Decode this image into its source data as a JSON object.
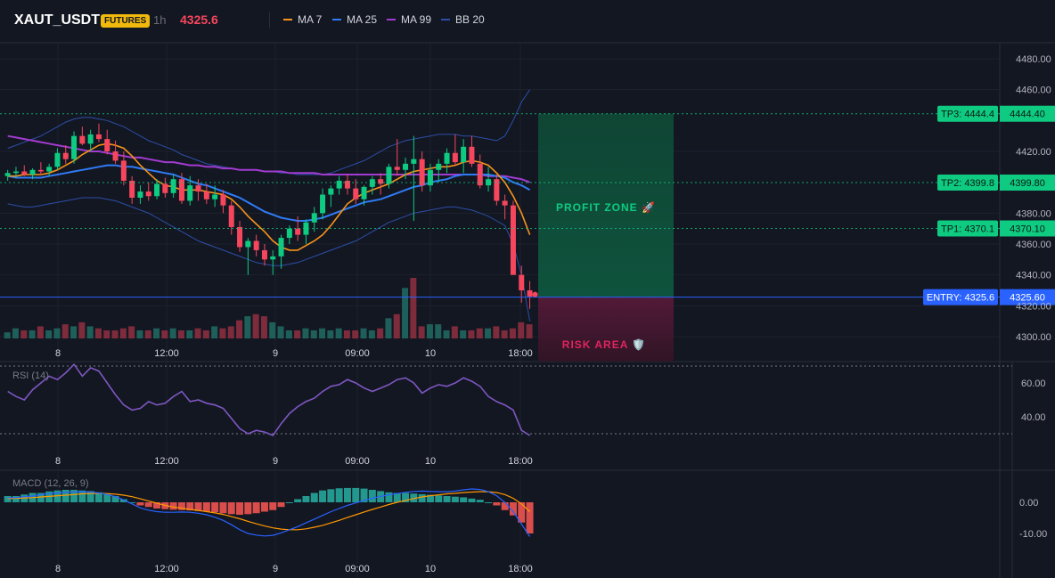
{
  "header": {
    "symbol": "XAUT_USDT",
    "badge": "FUTURES",
    "timeframe": "1h",
    "last_price": "4325.6"
  },
  "legend": [
    {
      "label": "MA 7",
      "color": "#f7931a"
    },
    {
      "label": "MA 25",
      "color": "#2f7bf5"
    },
    {
      "label": "MA 99",
      "color": "#a23bd1"
    },
    {
      "label": "BB 20",
      "color": "#2d4ea8"
    }
  ],
  "colors": {
    "up": "#26a69a",
    "up_bright": "#0ecb81",
    "down": "#f6465d",
    "entry": "#2962ff",
    "tp": "#0ecb81",
    "profit_zone": "#0c3a2c",
    "risk_zone": "#3a1426",
    "rsi": "#7e57c2",
    "macd_line": "#2962ff",
    "signal_line": "#ff9800"
  },
  "x_labels": [
    "8",
    "12:00",
    "9",
    "09:00",
    "10",
    "18:00"
  ],
  "zones": {
    "profit_label": "PROFIT ZONE 🚀",
    "risk_label": "RISK AREA 🛡️"
  },
  "levels": [
    {
      "name": "TP3",
      "tag": "TP3: 4444.4",
      "axis": "4444.40",
      "value": 4444.4
    },
    {
      "name": "TP2",
      "tag": "TP2: 4399.8",
      "axis": "4399.80",
      "value": 4399.8
    },
    {
      "name": "TP1",
      "tag": "TP1: 4370.1",
      "axis": "4370.10",
      "value": 4370.1
    },
    {
      "name": "ENTRY",
      "tag": "ENTRY: 4325.6",
      "axis": "4325.60",
      "value": 4325.6
    }
  ],
  "rsi_label": "RSI (14)",
  "macd_label": "MACD (12, 26, 9)",
  "chart_data": {
    "type": "candlestick",
    "price_axis": {
      "ticks": [
        "4480.00",
        "4460.00",
        "4420.00",
        "4380.00",
        "4360.00",
        "4340.00",
        "4320.00",
        "4300.00"
      ],
      "tick_values": [
        4480,
        4460,
        4420,
        4380,
        4360,
        4340,
        4320,
        4300
      ],
      "range": [
        4300,
        4480
      ]
    },
    "rsi_axis": {
      "ticks": [
        "60.00",
        "40.00"
      ],
      "tick_values": [
        60,
        40
      ],
      "bands": [
        70,
        30
      ],
      "range": [
        15,
        85
      ]
    },
    "macd_axis": {
      "ticks": [
        "0.00",
        "-10.00"
      ],
      "tick_values": [
        0,
        -10
      ],
      "range": [
        -14,
        8
      ]
    },
    "candles": [
      [
        4404,
        4408,
        4401,
        4406
      ],
      [
        4406,
        4410,
        4403,
        4407
      ],
      [
        4407,
        4411,
        4404,
        4405
      ],
      [
        4405,
        4409,
        4402,
        4408
      ],
      [
        4408,
        4413,
        4405,
        4407
      ],
      [
        4407,
        4412,
        4404,
        4410
      ],
      [
        4410,
        4422,
        4408,
        4419
      ],
      [
        4419,
        4424,
        4412,
        4415
      ],
      [
        4415,
        4433,
        4412,
        4430
      ],
      [
        4430,
        4436,
        4424,
        4425
      ],
      [
        4425,
        4434,
        4420,
        4431
      ],
      [
        4431,
        4438,
        4426,
        4428
      ],
      [
        4428,
        4434,
        4418,
        4420
      ],
      [
        4420,
        4427,
        4412,
        4414
      ],
      [
        4414,
        4420,
        4398,
        4401
      ],
      [
        4401,
        4404,
        4386,
        4390
      ],
      [
        4390,
        4398,
        4386,
        4394
      ],
      [
        4394,
        4400,
        4388,
        4391
      ],
      [
        4391,
        4402,
        4389,
        4399
      ],
      [
        4399,
        4403,
        4390,
        4393
      ],
      [
        4393,
        4405,
        4390,
        4402
      ],
      [
        4402,
        4406,
        4386,
        4388
      ],
      [
        4388,
        4404,
        4385,
        4398
      ],
      [
        4398,
        4402,
        4388,
        4394
      ],
      [
        4394,
        4399,
        4386,
        4389
      ],
      [
        4389,
        4398,
        4384,
        4392
      ],
      [
        4392,
        4395,
        4380,
        4385
      ],
      [
        4385,
        4388,
        4366,
        4371
      ],
      [
        4371,
        4375,
        4355,
        4358
      ],
      [
        4358,
        4364,
        4340,
        4362
      ],
      [
        4362,
        4366,
        4352,
        4356
      ],
      [
        4356,
        4360,
        4346,
        4350
      ],
      [
        4350,
        4356,
        4340,
        4352
      ],
      [
        4352,
        4366,
        4344,
        4364
      ],
      [
        4364,
        4372,
        4360,
        4370
      ],
      [
        4370,
        4378,
        4362,
        4366
      ],
      [
        4366,
        4376,
        4360,
        4374
      ],
      [
        4374,
        4384,
        4368,
        4380
      ],
      [
        4380,
        4396,
        4376,
        4392
      ],
      [
        4392,
        4398,
        4384,
        4396
      ],
      [
        4396,
        4404,
        4392,
        4401
      ],
      [
        4401,
        4405,
        4392,
        4396
      ],
      [
        4396,
        4402,
        4386,
        4389
      ],
      [
        4389,
        4398,
        4385,
        4397
      ],
      [
        4397,
        4404,
        4392,
        4402
      ],
      [
        4402,
        4406,
        4392,
        4399
      ],
      [
        4399,
        4412,
        4396,
        4410
      ],
      [
        4410,
        4428,
        4404,
        4408
      ],
      [
        4408,
        4416,
        4402,
        4412
      ],
      [
        4412,
        4430,
        4375,
        4415
      ],
      [
        4415,
        4420,
        4394,
        4398
      ],
      [
        4398,
        4412,
        4394,
        4408
      ],
      [
        4408,
        4415,
        4400,
        4412
      ],
      [
        4412,
        4422,
        4406,
        4419
      ],
      [
        4419,
        4431,
        4411,
        4413
      ],
      [
        4413,
        4428,
        4406,
        4423
      ],
      [
        4423,
        4430,
        4410,
        4412
      ],
      [
        4412,
        4418,
        4396,
        4398
      ],
      [
        4398,
        4410,
        4394,
        4402
      ],
      [
        4402,
        4405,
        4385,
        4388
      ],
      [
        4388,
        4392,
        4376,
        4385
      ],
      [
        4385,
        4388,
        4340,
        4340
      ],
      [
        4340,
        4346,
        4322,
        4330
      ],
      [
        4330,
        4336,
        4318,
        4326
      ]
    ],
    "volume": [
      3,
      5,
      4,
      4,
      6,
      4,
      5,
      7,
      6,
      8,
      6,
      5,
      4,
      4,
      5,
      6,
      4,
      4,
      5,
      4,
      5,
      4,
      4,
      5,
      4,
      6,
      5,
      6,
      9,
      11,
      12,
      11,
      8,
      6,
      4,
      4,
      5,
      4,
      5,
      4,
      5,
      4,
      4,
      5,
      4,
      5,
      10,
      12,
      25,
      30,
      6,
      7,
      7,
      4,
      6,
      4,
      4,
      5,
      5,
      6,
      4,
      5,
      8,
      7
    ],
    "volume_up": [
      true,
      true,
      false,
      true,
      false,
      true,
      true,
      false,
      true,
      false,
      true,
      false,
      false,
      false,
      false,
      false,
      true,
      false,
      true,
      false,
      true,
      false,
      true,
      false,
      false,
      true,
      false,
      false,
      false,
      true,
      false,
      false,
      true,
      true,
      true,
      false,
      true,
      true,
      true,
      true,
      true,
      false,
      false,
      true,
      true,
      false,
      true,
      false,
      true,
      false,
      false,
      true,
      true,
      true,
      false,
      true,
      false,
      false,
      true,
      false,
      false,
      false,
      false,
      false
    ],
    "ma7": [
      4404,
      4404,
      4405,
      4405,
      4405,
      4406,
      4408,
      4411,
      4414,
      4418,
      4421,
      4424,
      4425,
      4424,
      4422,
      4417,
      4411,
      4406,
      4401,
      4398,
      4397,
      4395,
      4395,
      4395,
      4394,
      4393,
      4392,
      4389,
      4384,
      4378,
      4373,
      4368,
      4362,
      4358,
      4356,
      4356,
      4359,
      4362,
      4366,
      4372,
      4379,
      4386,
      4390,
      4393,
      4395,
      4397,
      4399,
      4402,
      4405,
      4407,
      4408,
      4409,
      4410,
      4410,
      4411,
      4413,
      4414,
      4413,
      4411,
      4406,
      4400,
      4391,
      4380,
      4366
    ],
    "ma25": [
      4404,
      4403,
      4403,
      4403,
      4403,
      4404,
      4405,
      4406,
      4407,
      4408,
      4409,
      4410,
      4411,
      4411,
      4410,
      4410,
      4409,
      4408,
      4407,
      4406,
      4405,
      4403,
      4401,
      4399,
      4398,
      4396,
      4394,
      4392,
      4390,
      4387,
      4384,
      4381,
      4379,
      4377,
      4376,
      4375,
      4375,
      4376,
      4377,
      4379,
      4381,
      4383,
      4385,
      4387,
      4388,
      4389,
      4391,
      4393,
      4395,
      4397,
      4398,
      4400,
      4401,
      4402,
      4404,
      4405,
      4405,
      4405,
      4405,
      4404,
      4403,
      4400,
      4398,
      4395
    ],
    "ma99": [
      4430,
      4429,
      4428,
      4427,
      4426,
      4425,
      4424,
      4423,
      4422,
      4421,
      4420,
      4420,
      4419,
      4418,
      4417,
      4416,
      4416,
      4415,
      4414,
      4413,
      4413,
      4412,
      4411,
      4411,
      4410,
      4410,
      4409,
      4409,
      4408,
      4408,
      4408,
      4407,
      4407,
      4407,
      4406,
      4406,
      4406,
      4406,
      4405,
      4405,
      4405,
      4405,
      4405,
      4405,
      4405,
      4405,
      4405,
      4405,
      4405,
      4405,
      4405,
      4405,
      4405,
      4405,
      4405,
      4405,
      4405,
      4405,
      4404,
      4404,
      4404,
      4403,
      4402,
      4400
    ],
    "bb_upper": [
      4422,
      4424,
      4426,
      4428,
      4430,
      4433,
      4436,
      4439,
      4441,
      4442,
      4442,
      4441,
      4440,
      4438,
      4436,
      4433,
      4430,
      4427,
      4425,
      4423,
      4421,
      4418,
      4416,
      4414,
      4412,
      4411,
      4410,
      4409,
      4408,
      4408,
      4408,
      4407,
      4407,
      4406,
      4406,
      4405,
      4405,
      4405,
      4405,
      4406,
      4408,
      4410,
      4412,
      4414,
      4417,
      4420,
      4423,
      4425,
      4427,
      4428,
      4429,
      4430,
      4431,
      4431,
      4431,
      4430,
      4430,
      4429,
      4428,
      4427,
      4430,
      4440,
      4452,
      4460
    ],
    "bb_lower": [
      4386,
      4385,
      4384,
      4384,
      4385,
      4386,
      4387,
      4388,
      4389,
      4390,
      4390,
      4390,
      4389,
      4388,
      4386,
      4384,
      4382,
      4380,
      4377,
      4374,
      4371,
      4368,
      4365,
      4362,
      4360,
      4358,
      4356,
      4354,
      4352,
      4350,
      4348,
      4347,
      4346,
      4346,
      4347,
      4348,
      4350,
      4352,
      4354,
      4356,
      4358,
      4360,
      4362,
      4365,
      4368,
      4371,
      4374,
      4376,
      4378,
      4380,
      4381,
      4382,
      4383,
      4384,
      4384,
      4383,
      4382,
      4380,
      4378,
      4375,
      4372,
      4360,
      4340,
      4310
    ],
    "rsi": [
      55,
      52,
      50,
      56,
      60,
      64,
      62,
      66,
      71,
      64,
      69,
      67,
      60,
      53,
      47,
      44,
      45,
      49,
      47,
      48,
      52,
      55,
      49,
      50,
      48,
      47,
      45,
      39,
      33,
      30,
      32,
      31,
      29,
      36,
      42,
      46,
      49,
      51,
      55,
      58,
      59,
      62,
      60,
      57,
      55,
      57,
      59,
      62,
      63,
      60,
      54,
      57,
      59,
      58,
      60,
      63,
      61,
      58,
      52,
      49,
      47,
      44,
      32,
      29
    ],
    "macd": [
      1.5,
      1.5,
      1.8,
      2,
      2.5,
      2.8,
      3,
      3.2,
      3.3,
      3.4,
      3.3,
      3,
      2.5,
      1.8,
      0.8,
      -0.5,
      -1.8,
      -2.5,
      -3,
      -3.2,
      -3.2,
      -3.1,
      -3.2,
      -3.5,
      -4,
      -4.8,
      -5.8,
      -7.2,
      -8.8,
      -10,
      -10.5,
      -10.8,
      -10.6,
      -9.8,
      -8.8,
      -7.8,
      -6.6,
      -5.4,
      -4.2,
      -3,
      -2,
      -1,
      -0.2,
      0.6,
      1.3,
      1.9,
      2.4,
      2.8,
      3.2,
      3.5,
      3.6,
      3.5,
      3.4,
      3.4,
      3.6,
      4,
      4.3,
      4.1,
      3.4,
      2.1,
      0,
      -3,
      -7,
      -11
    ],
    "signal": [
      1.2,
      1.3,
      1.4,
      1.5,
      1.7,
      1.9,
      2.1,
      2.3,
      2.5,
      2.7,
      2.8,
      2.9,
      2.8,
      2.6,
      2.3,
      1.8,
      1.1,
      0.4,
      -0.3,
      -1,
      -1.5,
      -1.9,
      -2.3,
      -2.6,
      -3,
      -3.4,
      -3.9,
      -4.6,
      -5.3,
      -6.1,
      -6.9,
      -7.6,
      -8.2,
      -8.6,
      -8.8,
      -8.8,
      -8.5,
      -8,
      -7.4,
      -6.6,
      -5.8,
      -4.9,
      -4,
      -3.1,
      -2.3,
      -1.5,
      -0.7,
      0,
      0.6,
      1.2,
      1.7,
      2.1,
      2.4,
      2.7,
      2.9,
      3.1,
      3.3,
      3.4,
      3.4,
      3.1,
      2.5,
      1.3,
      -0.5,
      -3
    ],
    "histogram": [
      2,
      2,
      2.5,
      3,
      3,
      3.5,
      3.8,
      4,
      4,
      3.8,
      3.6,
      3.2,
      2.8,
      2,
      1,
      0,
      -1,
      -1.5,
      -2,
      -2.2,
      -2.4,
      -2.5,
      -2.6,
      -2.8,
      -3,
      -3.2,
      -3.5,
      -3.8,
      -4,
      -3.8,
      -3.5,
      -3,
      -2.5,
      -1.5,
      0,
      1,
      2,
      3,
      3.8,
      4.2,
      4.5,
      4.6,
      4.6,
      4.4,
      4,
      3.6,
      3.2,
      3,
      3,
      2.8,
      2.6,
      2.4,
      2.2,
      2,
      1.8,
      1.6,
      1.2,
      0.8,
      0,
      -1,
      -2.5,
      -4.2,
      -6.5,
      -10
    ]
  }
}
